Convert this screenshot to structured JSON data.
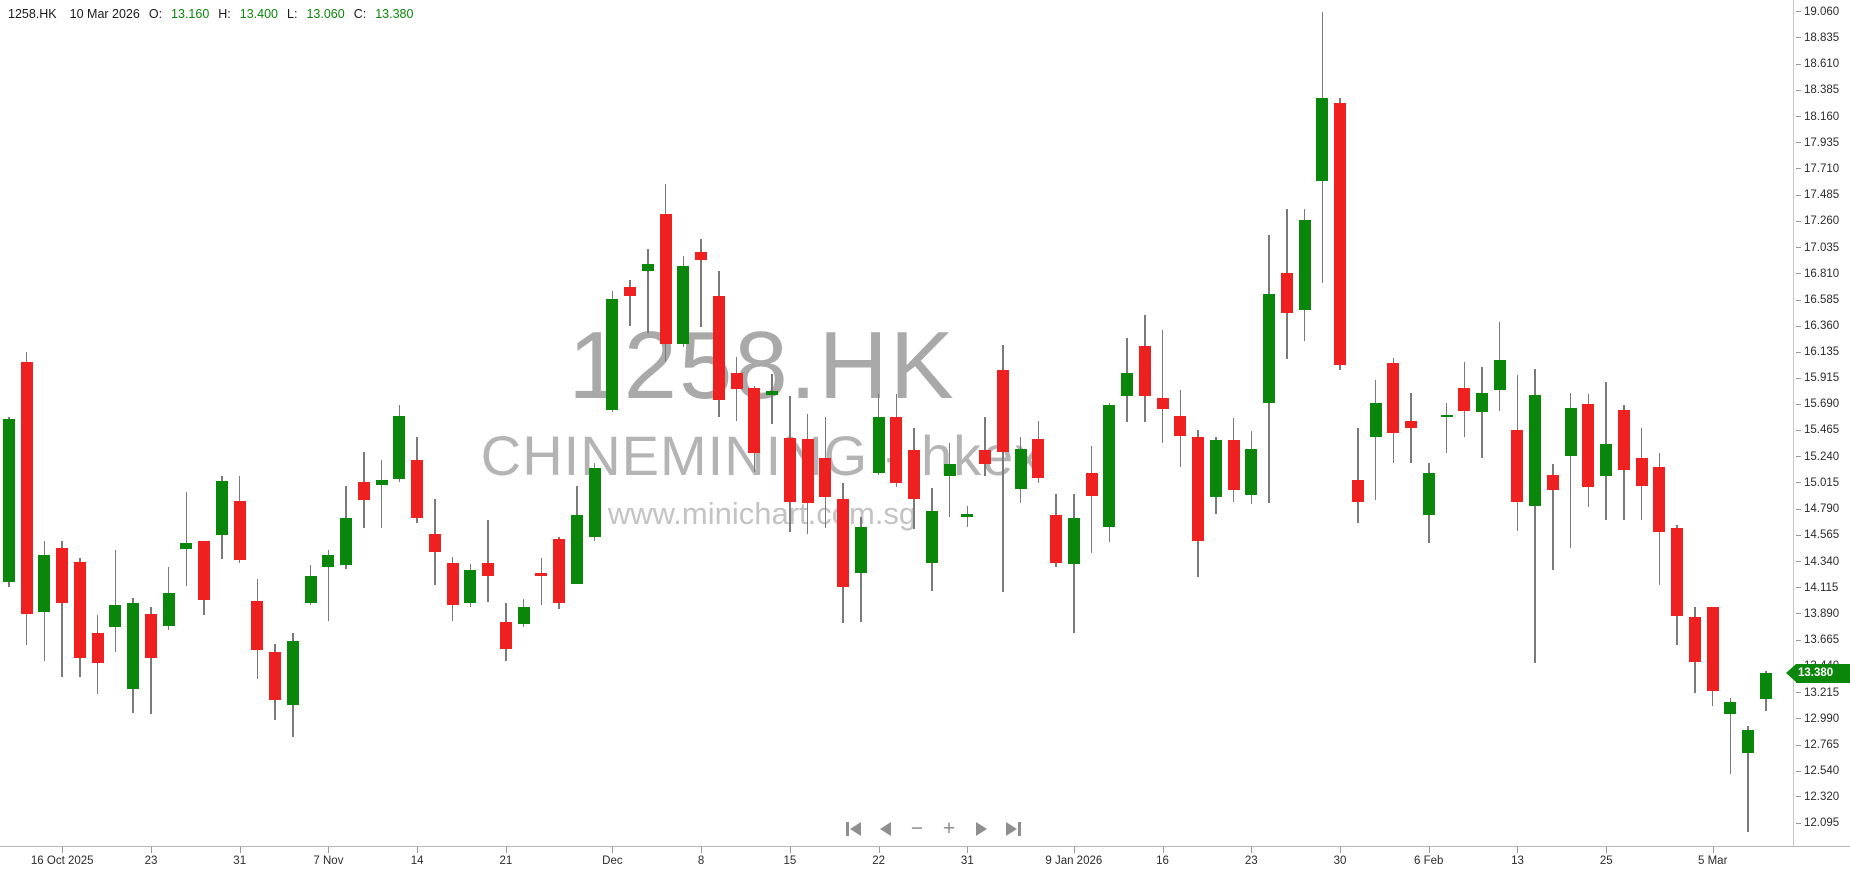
{
  "header": {
    "symbol": "1258.HK",
    "date": "10 Mar 2026",
    "open_label": "O:",
    "open": "13.160",
    "high_label": "H:",
    "high": "13.400",
    "low_label": "L:",
    "low": "13.060",
    "close_label": "C:",
    "close": "13.380"
  },
  "watermark": {
    "symbol": "1258.HK",
    "name": "CHINEMINING - hkex",
    "site": "www.minichart.com.sg"
  },
  "price_tag": {
    "value": "13.380",
    "color": "#0a870a"
  },
  "colors": {
    "up": "#0a870a",
    "down": "#ee2020",
    "wick": "#7a7a7a",
    "axis_text": "#2b2b2b",
    "watermark": "#b0b0b0"
  },
  "y_axis": {
    "labels": [
      "19.060",
      "18.835",
      "18.610",
      "18.385",
      "18.160",
      "17.935",
      "17.710",
      "17.485",
      "17.260",
      "17.035",
      "16.810",
      "16.585",
      "16.360",
      "16.135",
      "15.915",
      "15.690",
      "15.465",
      "15.240",
      "15.015",
      "14.790",
      "14.565",
      "14.340",
      "14.115",
      "13.890",
      "13.665",
      "13.440",
      "13.215",
      "12.990",
      "12.765",
      "12.540",
      "12.320",
      "12.095"
    ]
  },
  "x_axis": {
    "ticks": [
      {
        "label": "16 Oct 2025",
        "i": 3
      },
      {
        "label": "23",
        "i": 8
      },
      {
        "label": "31",
        "i": 13
      },
      {
        "label": "7 Nov",
        "i": 18
      },
      {
        "label": "14",
        "i": 23
      },
      {
        "label": "21",
        "i": 28
      },
      {
        "label": "Dec",
        "i": 34
      },
      {
        "label": "8",
        "i": 39
      },
      {
        "label": "15",
        "i": 44
      },
      {
        "label": "22",
        "i": 49
      },
      {
        "label": "31",
        "i": 54
      },
      {
        "label": "9 Jan 2026",
        "i": 60
      },
      {
        "label": "16",
        "i": 65
      },
      {
        "label": "23",
        "i": 70
      },
      {
        "label": "30",
        "i": 75
      },
      {
        "label": "6 Feb",
        "i": 80
      },
      {
        "label": "13",
        "i": 85
      },
      {
        "label": "25",
        "i": 90
      },
      {
        "label": "5 Mar",
        "i": 96
      }
    ]
  },
  "nav": {
    "zoom_out_glyph": "−",
    "zoom_in_glyph": "+"
  },
  "chart_data": {
    "type": "candlestick",
    "title": "1258.HK",
    "subtitle": "CHINEMINING - hkex",
    "last_bar": {
      "date": "10 Mar 2026",
      "open": 13.16,
      "high": 13.4,
      "low": 13.06,
      "close": 13.38
    },
    "current_price": 13.38,
    "y_range": [
      12.095,
      19.06
    ],
    "x_range_labels": [
      "16 Oct 2025",
      "10 Mar 2026"
    ],
    "grid": false,
    "candles_ohlc": [
      [
        14.16,
        15.58,
        14.12,
        15.56
      ],
      [
        16.05,
        16.14,
        13.62,
        13.89
      ],
      [
        13.91,
        14.52,
        13.49,
        14.4
      ],
      [
        14.46,
        14.52,
        13.35,
        13.98
      ],
      [
        14.34,
        14.37,
        13.35,
        13.51
      ],
      [
        13.73,
        13.88,
        13.2,
        13.47
      ],
      [
        13.78,
        14.44,
        13.56,
        13.97
      ],
      [
        13.25,
        14.03,
        13.04,
        13.98
      ],
      [
        13.89,
        13.95,
        13.03,
        13.51
      ],
      [
        13.79,
        14.29,
        13.75,
        14.07
      ],
      [
        14.45,
        14.94,
        14.13,
        14.5
      ],
      [
        14.52,
        14.52,
        13.88,
        14.01
      ],
      [
        14.57,
        15.07,
        14.36,
        15.03
      ],
      [
        14.86,
        15.07,
        14.33,
        14.35
      ],
      [
        14.0,
        14.19,
        13.33,
        13.58
      ],
      [
        13.56,
        13.63,
        12.98,
        13.15
      ],
      [
        13.11,
        13.73,
        12.83,
        13.66
      ],
      [
        13.98,
        14.31,
        13.97,
        14.22
      ],
      [
        14.29,
        14.44,
        13.83,
        14.4
      ],
      [
        14.31,
        14.99,
        14.28,
        14.71
      ],
      [
        15.02,
        15.28,
        14.63,
        14.87
      ],
      [
        15.0,
        15.21,
        14.63,
        15.04
      ],
      [
        15.05,
        15.68,
        15.02,
        15.59
      ],
      [
        15.21,
        15.41,
        14.67,
        14.71
      ],
      [
        14.58,
        14.88,
        14.14,
        14.42
      ],
      [
        14.33,
        14.38,
        13.83,
        13.97
      ],
      [
        13.98,
        14.32,
        13.95,
        14.27
      ],
      [
        14.33,
        14.7,
        13.99,
        14.22
      ],
      [
        13.82,
        13.98,
        13.49,
        13.59
      ],
      [
        13.8,
        14.02,
        13.78,
        13.95
      ],
      [
        14.24,
        14.37,
        13.97,
        14.22
      ],
      [
        14.53,
        14.55,
        13.93,
        13.98
      ],
      [
        14.15,
        14.99,
        14.15,
        14.74
      ],
      [
        14.55,
        15.19,
        14.52,
        15.14
      ],
      [
        15.64,
        16.66,
        15.62,
        16.59
      ],
      [
        16.7,
        16.76,
        16.36,
        16.62
      ],
      [
        16.83,
        17.02,
        16.3,
        16.89
      ],
      [
        17.32,
        17.58,
        16.05,
        16.21
      ],
      [
        16.21,
        16.96,
        16.18,
        16.88
      ],
      [
        17.0,
        17.11,
        16.35,
        16.93
      ],
      [
        16.62,
        16.83,
        15.58,
        15.73
      ],
      [
        15.96,
        16.1,
        15.55,
        15.82
      ],
      [
        15.83,
        15.85,
        15.11,
        15.27
      ],
      [
        15.77,
        15.95,
        15.52,
        15.8
      ],
      [
        15.4,
        15.76,
        14.59,
        14.85
      ],
      [
        15.39,
        15.61,
        14.58,
        14.84
      ],
      [
        15.23,
        15.58,
        14.63,
        14.89
      ],
      [
        14.88,
        15.01,
        13.81,
        14.12
      ],
      [
        14.24,
        14.72,
        13.82,
        14.64
      ],
      [
        15.1,
        15.78,
        15.08,
        15.58
      ],
      [
        15.58,
        15.78,
        14.98,
        15.01
      ],
      [
        15.3,
        15.49,
        14.62,
        14.88
      ],
      [
        14.33,
        14.97,
        14.09,
        14.77
      ],
      [
        15.07,
        15.36,
        14.72,
        15.18
      ],
      [
        14.72,
        14.82,
        14.64,
        14.75
      ],
      [
        15.3,
        15.58,
        15.07,
        15.18
      ],
      [
        15.98,
        16.2,
        14.08,
        15.28
      ],
      [
        14.96,
        15.41,
        14.84,
        15.31
      ],
      [
        15.39,
        15.55,
        15.01,
        15.06
      ],
      [
        14.74,
        14.92,
        14.29,
        14.33
      ],
      [
        14.32,
        14.92,
        13.73,
        14.71
      ],
      [
        15.1,
        15.33,
        14.41,
        14.9
      ],
      [
        14.64,
        15.7,
        14.51,
        15.68
      ],
      [
        15.76,
        16.26,
        15.54,
        15.96
      ],
      [
        16.19,
        16.46,
        15.54,
        15.76
      ],
      [
        15.74,
        16.33,
        15.36,
        15.65
      ],
      [
        15.59,
        15.81,
        15.15,
        15.42
      ],
      [
        15.41,
        15.47,
        14.21,
        14.52
      ],
      [
        14.89,
        15.41,
        14.75,
        15.38
      ],
      [
        15.38,
        15.57,
        14.85,
        14.95
      ],
      [
        14.91,
        15.46,
        14.83,
        15.31
      ],
      [
        15.7,
        17.14,
        14.84,
        16.64
      ],
      [
        16.82,
        17.37,
        16.08,
        16.47
      ],
      [
        16.5,
        17.37,
        16.23,
        17.27
      ],
      [
        17.61,
        19.06,
        16.73,
        18.32
      ],
      [
        18.28,
        18.32,
        15.98,
        16.03
      ],
      [
        15.04,
        15.49,
        14.67,
        14.85
      ],
      [
        15.41,
        15.9,
        14.87,
        15.7
      ],
      [
        16.04,
        16.09,
        15.19,
        15.44
      ],
      [
        15.55,
        15.79,
        15.19,
        15.49
      ],
      [
        14.74,
        15.19,
        14.5,
        15.1
      ],
      [
        15.58,
        15.7,
        15.27,
        15.6
      ],
      [
        15.83,
        16.05,
        15.41,
        15.63
      ],
      [
        15.62,
        16.01,
        15.23,
        15.79
      ],
      [
        15.81,
        16.4,
        15.63,
        16.07
      ],
      [
        15.47,
        15.94,
        14.6,
        14.85
      ],
      [
        14.82,
        15.99,
        13.47,
        15.77
      ],
      [
        15.08,
        15.18,
        14.27,
        14.95
      ],
      [
        15.25,
        15.79,
        14.46,
        15.66
      ],
      [
        15.69,
        15.78,
        14.81,
        14.98
      ],
      [
        15.07,
        15.88,
        14.7,
        15.35
      ],
      [
        15.64,
        15.68,
        14.7,
        15.13
      ],
      [
        15.23,
        15.49,
        14.7,
        14.99
      ],
      [
        15.15,
        15.27,
        14.14,
        14.59
      ],
      [
        14.63,
        14.65,
        13.62,
        13.87
      ],
      [
        13.86,
        13.95,
        13.21,
        13.48
      ],
      [
        13.95,
        13.95,
        13.1,
        13.23
      ],
      [
        13.03,
        13.17,
        12.52,
        13.13
      ],
      [
        12.7,
        12.93,
        12.02,
        12.89
      ],
      [
        13.16,
        13.4,
        13.06,
        13.38
      ]
    ]
  }
}
